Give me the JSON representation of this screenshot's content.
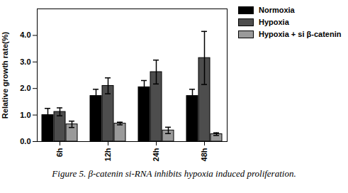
{
  "chart_data": {
    "type": "bar",
    "caption": "Figure 5. β-catenin si-RNA inhibits hypoxia induced proliferation.",
    "ylabel": "Relative growth rate(%)",
    "categories": [
      "6h",
      "12h",
      "24h",
      "48h"
    ],
    "series": [
      {
        "name": "Normoxia",
        "color": "#000000",
        "values": [
          1.0,
          1.72,
          2.05,
          1.72
        ],
        "errors": [
          0.25,
          0.25,
          0.25,
          0.25
        ]
      },
      {
        "name": "Hypoxia",
        "color": "#4d4d4d",
        "values": [
          1.12,
          2.1,
          2.62,
          3.15
        ],
        "errors": [
          0.15,
          0.3,
          0.45,
          1.0
        ]
      },
      {
        "name": "Hypoxia + si β-catenin",
        "color": "#9a9a9a",
        "values": [
          0.65,
          0.68,
          0.42,
          0.28
        ],
        "errors": [
          0.12,
          0.05,
          0.12,
          0.05
        ]
      }
    ],
    "ylim": [
      0,
      5
    ],
    "yticks": [
      0,
      1,
      2,
      3,
      4
    ],
    "legend": "upper right"
  }
}
